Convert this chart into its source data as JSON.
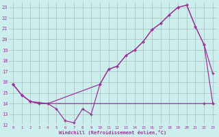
{
  "background_color": "#cceeed",
  "grid_color": "#aabbbb",
  "line_color": "#993399",
  "marker": "+",
  "xlim": [
    -0.5,
    23.5
  ],
  "ylim": [
    12,
    23.5
  ],
  "xticks": [
    0,
    1,
    2,
    3,
    4,
    5,
    6,
    7,
    8,
    9,
    10,
    11,
    12,
    13,
    14,
    15,
    16,
    17,
    18,
    19,
    20,
    21,
    22,
    23
  ],
  "yticks": [
    12,
    13,
    14,
    15,
    16,
    17,
    18,
    19,
    20,
    21,
    22,
    23
  ],
  "xlabel": "Windchill (Refroidissement éolien,°C)",
  "line1_x": [
    0,
    1,
    2,
    3,
    4,
    5,
    6,
    7,
    8,
    9,
    10,
    11,
    12,
    13,
    14,
    15,
    16,
    17,
    18,
    19,
    20,
    21,
    22,
    23
  ],
  "line1_y": [
    15.8,
    14.8,
    14.2,
    14.1,
    14.0,
    13.5,
    12.4,
    12.2,
    13.5,
    13.0,
    15.8,
    17.2,
    17.5,
    18.5,
    19.0,
    19.8,
    20.9,
    21.5,
    22.3,
    23.0,
    23.2,
    21.2,
    19.5,
    16.8
  ],
  "line2_x": [
    0,
    1,
    2,
    3,
    22,
    23
  ],
  "line2_y": [
    15.8,
    14.8,
    14.2,
    14.0,
    14.0,
    14.0
  ],
  "line3_x": [
    0,
    1,
    2,
    3,
    4,
    10,
    11,
    12,
    13,
    14,
    15,
    16,
    17,
    18,
    19,
    20,
    21,
    22,
    23
  ],
  "line3_y": [
    15.8,
    14.8,
    14.2,
    14.0,
    14.0,
    15.8,
    17.2,
    17.5,
    18.5,
    19.0,
    19.8,
    20.9,
    21.5,
    22.3,
    23.0,
    23.2,
    21.2,
    19.5,
    14.0
  ]
}
